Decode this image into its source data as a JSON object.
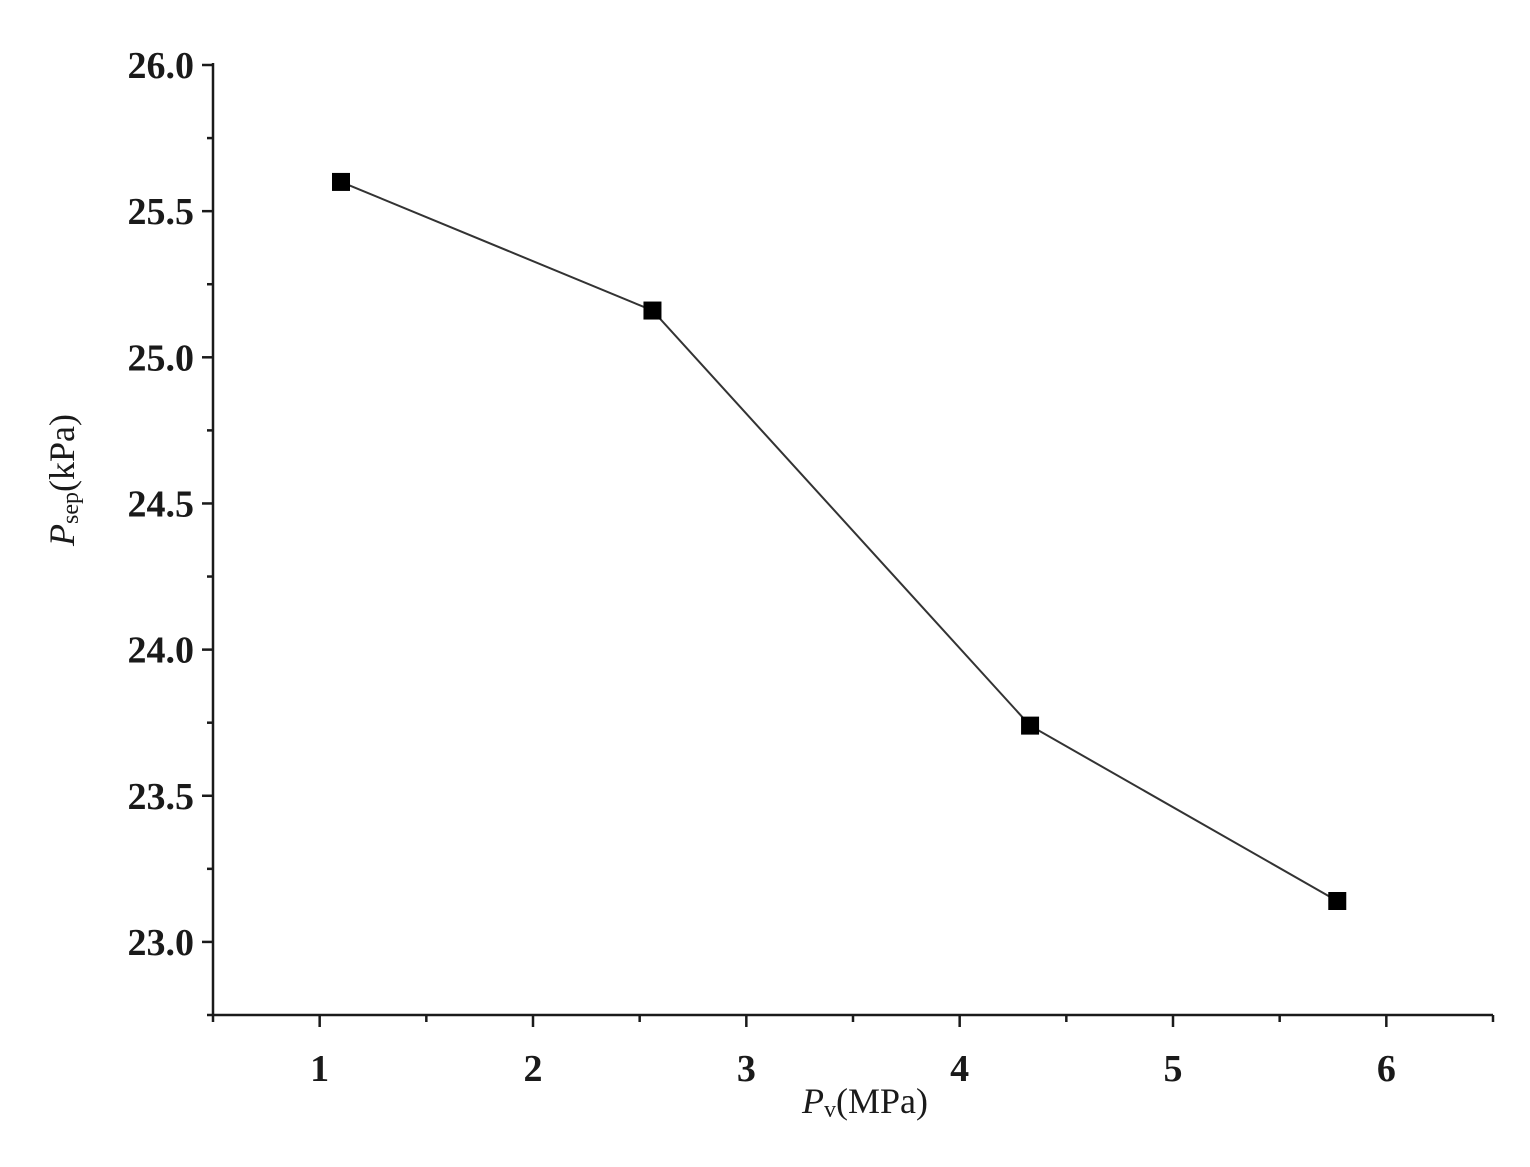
{
  "chart_data": {
    "type": "line",
    "title": "",
    "xlabel": {
      "symbol": "P",
      "subscript": "v",
      "unit": "(MPa)"
    },
    "ylabel": {
      "symbol": "P",
      "subscript": "sep",
      "unit": "(kPa)"
    },
    "xlim": [
      0.5,
      6.5
    ],
    "ylim": [
      22.75,
      26.0
    ],
    "x_ticks": [
      1,
      2,
      3,
      4,
      5,
      6
    ],
    "x_tick_labels": [
      "1",
      "2",
      "3",
      "4",
      "5",
      "6"
    ],
    "x_minor_ticks": [
      0.5,
      1.5,
      2.5,
      3.5,
      4.5,
      5.5,
      6.5
    ],
    "y_ticks": [
      23.0,
      23.5,
      24.0,
      24.5,
      25.0,
      25.5,
      26.0
    ],
    "y_tick_labels": [
      "23.0",
      "23.5",
      "24.0",
      "24.5",
      "25.0",
      "25.5",
      "26.0"
    ],
    "y_minor_ticks": [
      22.75,
      23.25,
      23.75,
      24.25,
      24.75,
      25.25,
      25.75
    ],
    "grid": false,
    "series": [
      {
        "marker": "square",
        "color": "#000000",
        "x": [
          1.1,
          2.56,
          4.33,
          5.77
        ],
        "y": [
          25.6,
          25.16,
          23.74,
          23.14
        ]
      }
    ]
  }
}
